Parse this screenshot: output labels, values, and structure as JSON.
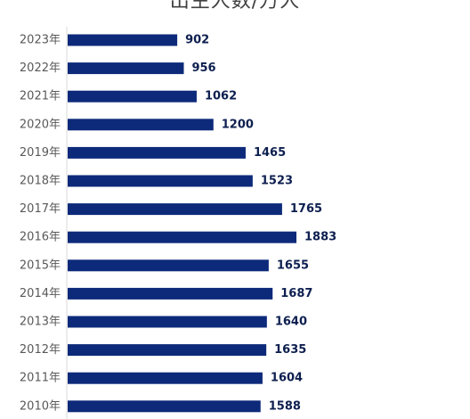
{
  "chart_data": {
    "type": "bar",
    "orientation": "horizontal",
    "title": "出生人数/万人",
    "categories": [
      "2023年",
      "2022年",
      "2021年",
      "2020年",
      "2019年",
      "2018年",
      "2017年",
      "2016年",
      "2015年",
      "2014年",
      "2013年",
      "2012年",
      "2011年",
      "2010年"
    ],
    "values": [
      902,
      956,
      1062,
      1200,
      1465,
      1523,
      1765,
      1883,
      1655,
      1687,
      1640,
      1635,
      1604,
      1588
    ],
    "data_labels": [
      "902",
      "956",
      "1062",
      "1200",
      "1465",
      "1523",
      "1765",
      "1883",
      "1655",
      "1687",
      "1640",
      "1635",
      "1604",
      "1588"
    ],
    "bar_color": "#0d2a7a",
    "xlim": [
      0,
      1883
    ],
    "grid": false,
    "legend": "none"
  }
}
